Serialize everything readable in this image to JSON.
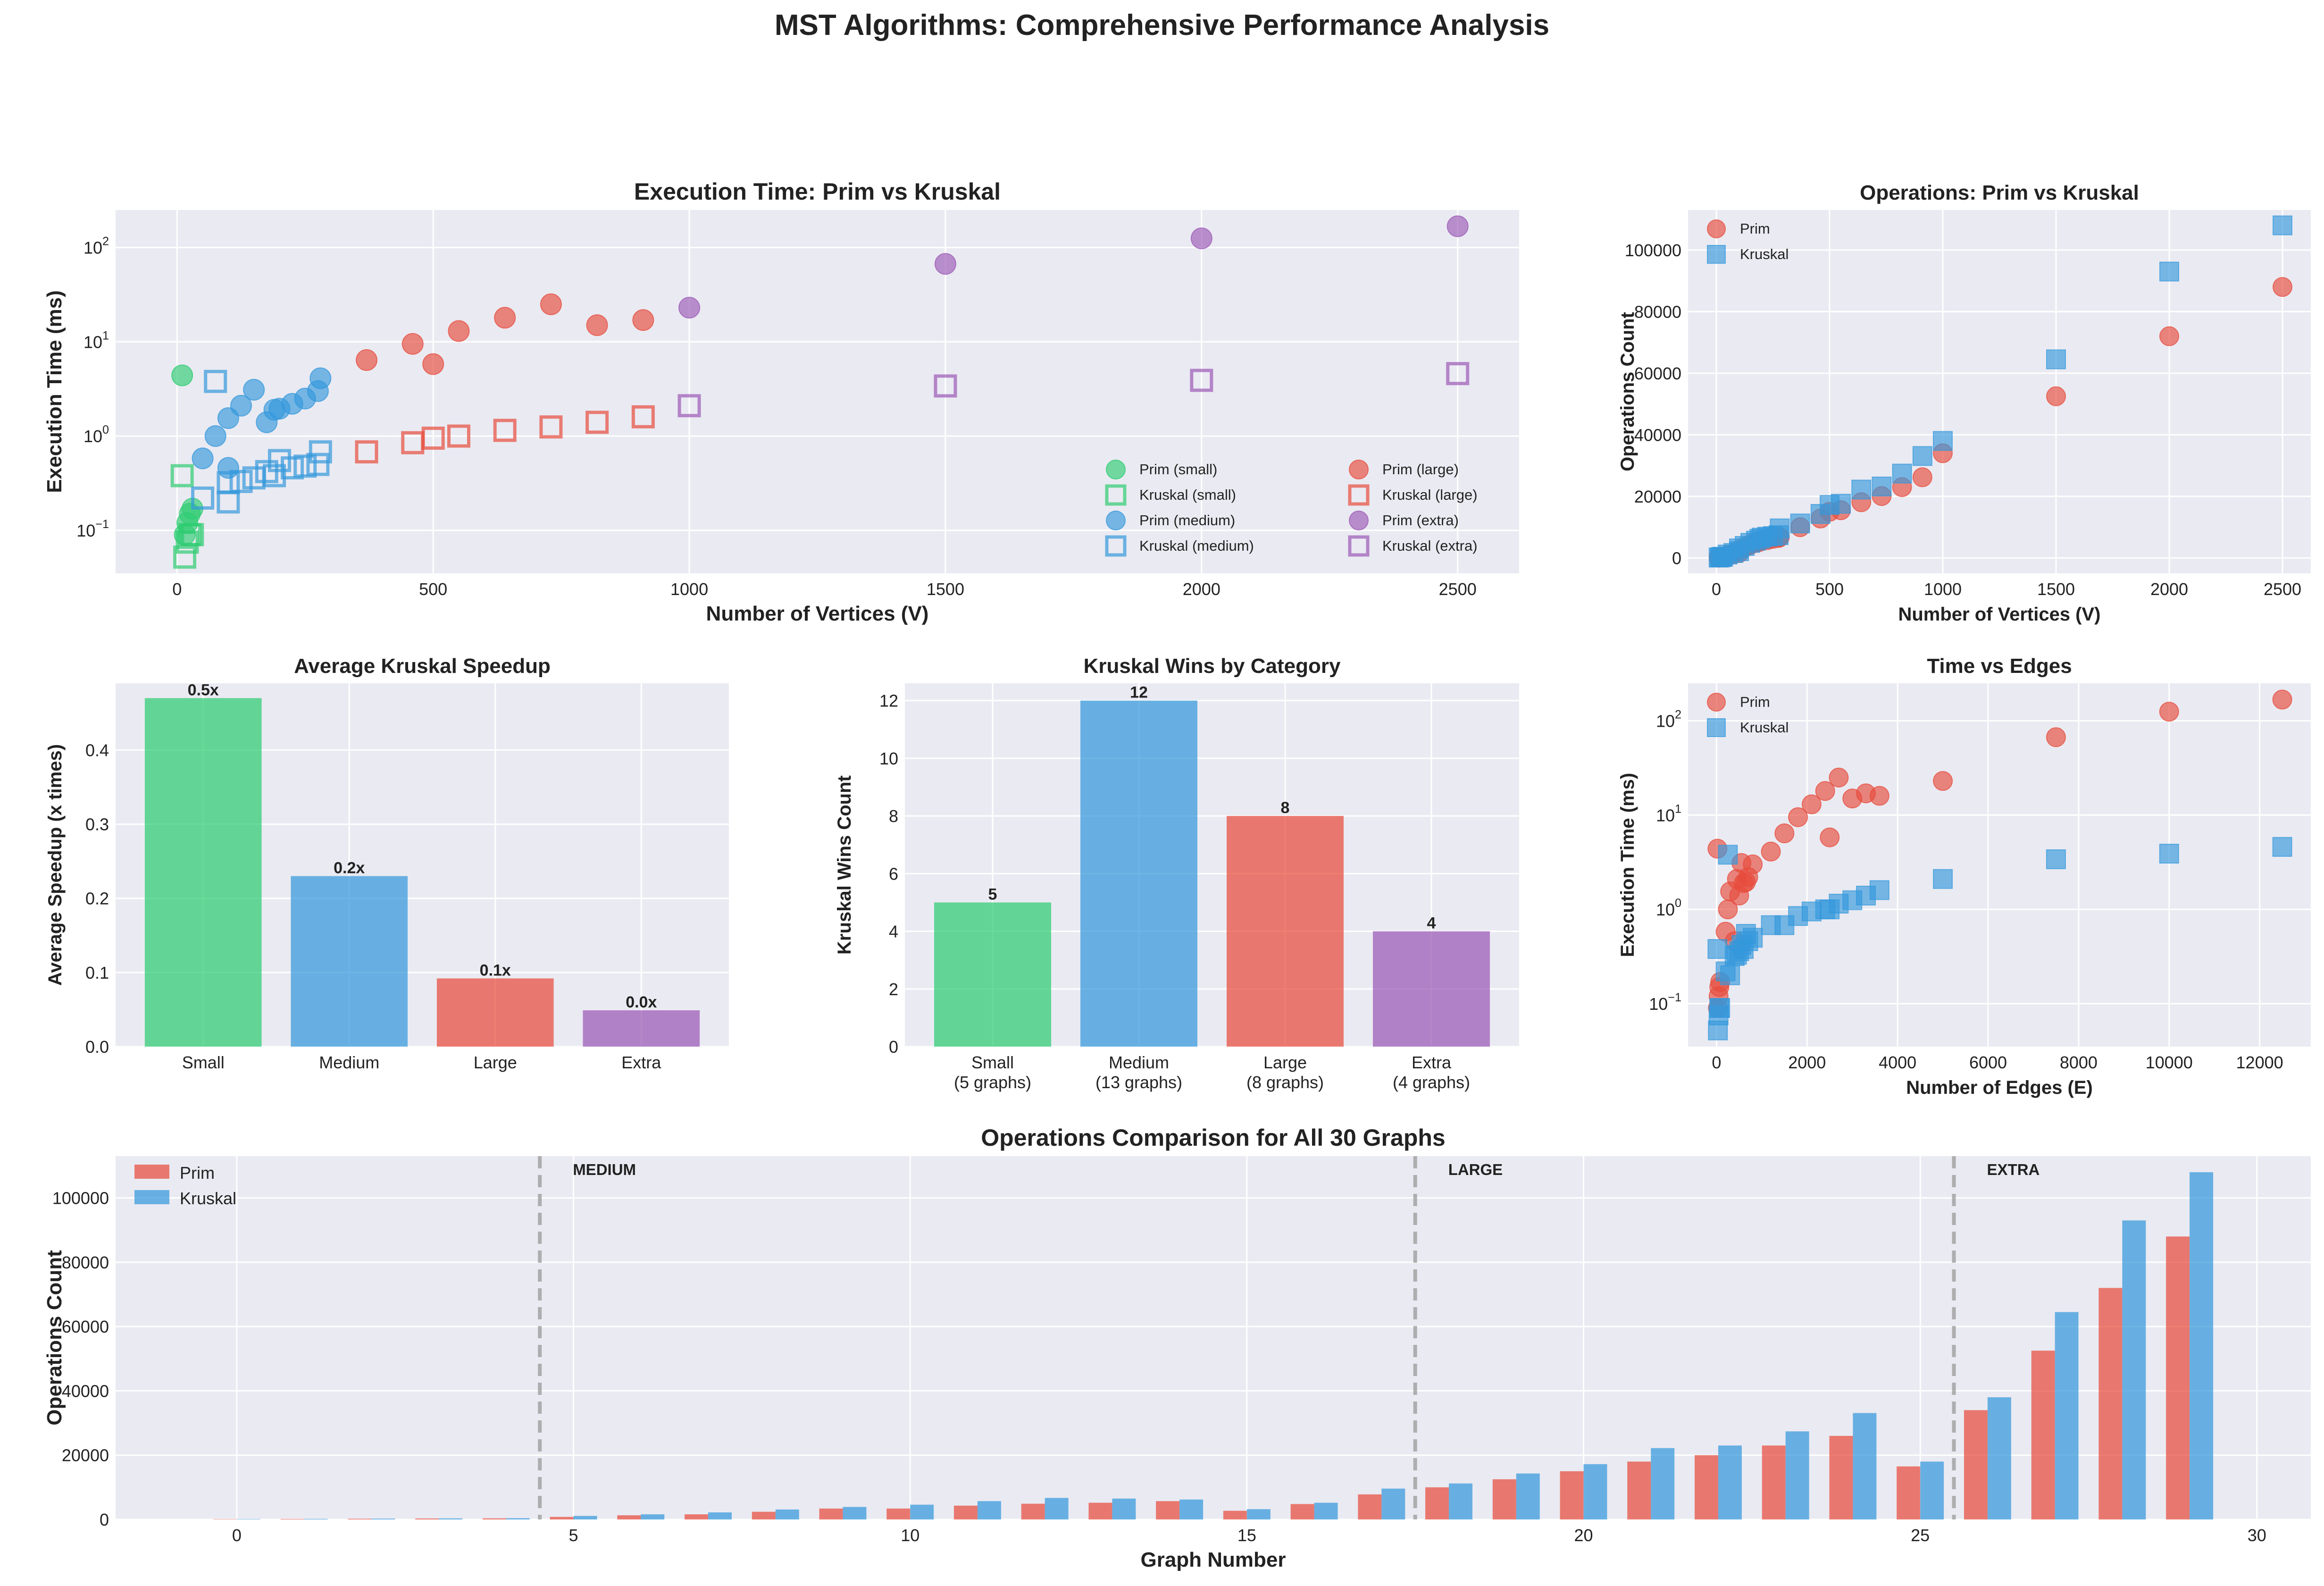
{
  "suptitle": "MST Algorithms: Comprehensive Performance Analysis",
  "colors": {
    "small": "#2ecc71",
    "medium": "#3498db",
    "large": "#e74c3c",
    "extra": "#9b59b6",
    "prim": "#e74c3c",
    "kruskal": "#3498db",
    "axes_bg": "#eaeaf2",
    "grid": "#ffffff"
  },
  "chart_data": [
    {
      "id": "exec_time",
      "type": "scatter",
      "title": "Execution Time: Prim vs Kruskal",
      "xlabel": "Number of Vertices (V)",
      "ylabel": "Execution Time (ms)",
      "xlim": [
        -120,
        2620
      ],
      "ylim": [
        0.035,
        250
      ],
      "yscale": "log",
      "xticks": [
        0,
        500,
        1000,
        1500,
        2000,
        2500
      ],
      "yticks": [
        0.1,
        1,
        10,
        100
      ],
      "ytick_labels": [
        "10",
        "10",
        "10",
        "10"
      ],
      "ytick_exponents": [
        "−1",
        "0",
        "1",
        "2"
      ],
      "legend": "lower-right",
      "series": [
        {
          "name": "Prim (small)",
          "group": "small",
          "marker": "circle",
          "x": [
            10,
            15,
            20,
            25,
            30
          ],
          "y": [
            4.4,
            0.09,
            0.12,
            0.15,
            0.17
          ]
        },
        {
          "name": "Kruskal (small)",
          "group": "small",
          "marker": "square",
          "x": [
            10,
            15,
            20,
            25,
            30
          ],
          "y": [
            0.38,
            0.052,
            0.075,
            0.09,
            0.09
          ]
        },
        {
          "name": "Prim (medium)",
          "group": "medium",
          "marker": "circle",
          "x": [
            50,
            75,
            100,
            100,
            125,
            150,
            175,
            190,
            200,
            225,
            250,
            275,
            280
          ],
          "y": [
            0.58,
            1.0,
            1.55,
            0.46,
            2.1,
            3.1,
            1.4,
            1.9,
            1.95,
            2.2,
            2.5,
            3.0,
            4.1
          ]
        },
        {
          "name": "Kruskal (medium)",
          "group": "medium",
          "marker": "square",
          "x": [
            50,
            75,
            100,
            100,
            125,
            150,
            175,
            190,
            200,
            225,
            250,
            275,
            280
          ],
          "y": [
            0.22,
            3.8,
            0.2,
            0.32,
            0.33,
            0.36,
            0.42,
            0.38,
            0.55,
            0.46,
            0.48,
            0.5,
            0.68
          ]
        },
        {
          "name": "Prim (large)",
          "group": "large",
          "marker": "circle",
          "x": [
            370,
            460,
            500,
            550,
            640,
            730,
            820,
            910
          ],
          "y": [
            6.4,
            9.5,
            5.8,
            13,
            18,
            25,
            15,
            17
          ]
        },
        {
          "name": "Kruskal (large)",
          "group": "large",
          "marker": "square",
          "x": [
            370,
            460,
            500,
            550,
            640,
            730,
            820,
            910
          ],
          "y": [
            0.68,
            0.85,
            0.95,
            1.0,
            1.15,
            1.25,
            1.4,
            1.6
          ]
        },
        {
          "name": "Prim (extra)",
          "group": "extra",
          "marker": "circle",
          "x": [
            1000,
            1500,
            2000,
            2500
          ],
          "y": [
            23,
            67,
            125,
            168
          ]
        },
        {
          "name": "Kruskal (extra)",
          "group": "extra",
          "marker": "square",
          "x": [
            1000,
            1500,
            2000,
            2500
          ],
          "y": [
            2.1,
            3.4,
            3.9,
            4.6
          ]
        }
      ]
    },
    {
      "id": "ops_vertices",
      "type": "scatter",
      "title": "Operations: Prim vs Kruskal",
      "xlabel": "Number of Vertices (V)",
      "ylabel": "Operations Count",
      "xlim": [
        -125,
        2625
      ],
      "ylim": [
        -5000,
        113000
      ],
      "xticks": [
        0,
        500,
        1000,
        1500,
        2000,
        2500
      ],
      "yticks": [
        0,
        20000,
        40000,
        60000,
        80000,
        100000
      ],
      "legend": "upper-left",
      "series": [
        {
          "name": "Prim",
          "marker": "circle",
          "x": [
            10,
            15,
            20,
            25,
            30,
            50,
            75,
            100,
            100,
            125,
            150,
            175,
            190,
            200,
            225,
            250,
            275,
            280,
            370,
            460,
            500,
            550,
            640,
            730,
            820,
            910,
            1000,
            1500,
            2000,
            2500
          ],
          "y": [
            100,
            150,
            220,
            300,
            350,
            800,
            1300,
            1600,
            2400,
            3400,
            4300,
            4900,
            5200,
            5700,
            5800,
            6200,
            6500,
            6800,
            10000,
            12800,
            15000,
            15500,
            18100,
            20100,
            23000,
            26200,
            34000,
            52500,
            72000,
            88000
          ]
        },
        {
          "name": "Kruskal",
          "marker": "square",
          "x": [
            10,
            15,
            20,
            25,
            30,
            50,
            75,
            100,
            100,
            125,
            150,
            175,
            190,
            200,
            225,
            250,
            275,
            280,
            370,
            460,
            500,
            550,
            640,
            730,
            820,
            910,
            1000,
            1500,
            2000,
            2500
          ],
          "y": [
            120,
            180,
            260,
            340,
            400,
            1100,
            1600,
            2200,
            3100,
            3900,
            4900,
            5600,
            6200,
            6600,
            6900,
            7100,
            7400,
            9600,
            11200,
            14300,
            17200,
            17600,
            22200,
            23200,
            27400,
            33100,
            38000,
            64500,
            93000,
            108000
          ]
        }
      ]
    },
    {
      "id": "avg_speedup",
      "type": "bar",
      "title": "Average Kruskal Speedup",
      "xlabel": "",
      "ylabel": "Average Speedup (x times)",
      "categories": [
        "Small",
        "Medium",
        "Large",
        "Extra"
      ],
      "values": [
        0.47,
        0.23,
        0.092,
        0.049
      ],
      "value_labels": [
        "0.5x",
        "0.2x",
        "0.1x",
        "0.0x"
      ],
      "ylim": [
        0,
        0.49
      ],
      "yticks": [
        0.0,
        0.1,
        0.2,
        0.3,
        0.4
      ],
      "ytick_labels": [
        "0.0",
        "0.1",
        "0.2",
        "0.3",
        "0.4"
      ]
    },
    {
      "id": "wins",
      "type": "bar",
      "title": "Kruskal Wins by Category",
      "xlabel": "",
      "ylabel": "Kruskal Wins Count",
      "categories": [
        "Small",
        "Medium",
        "Large",
        "Extra"
      ],
      "category_sublabels": [
        "(5 graphs)",
        "(13 graphs)",
        "(8 graphs)",
        "(4 graphs)"
      ],
      "values": [
        5,
        12,
        8,
        4
      ],
      "value_labels": [
        "5",
        "12",
        "8",
        "4"
      ],
      "ylim": [
        0,
        12.6
      ],
      "yticks": [
        0,
        2,
        4,
        6,
        8,
        10,
        12
      ]
    },
    {
      "id": "time_edges",
      "type": "scatter",
      "title": "Time vs Edges",
      "xlabel": "Number of Edges (E)",
      "ylabel": "Execution Time (ms)",
      "xlim": [
        -630,
        13130
      ],
      "ylim": [
        0.035,
        250
      ],
      "yscale": "log",
      "xticks": [
        0,
        2000,
        4000,
        6000,
        8000,
        10000,
        12000
      ],
      "yticks": [
        0.1,
        1,
        10,
        100
      ],
      "ytick_labels": [
        "10",
        "10",
        "10",
        "10"
      ],
      "ytick_exponents": [
        "−1",
        "0",
        "1",
        "2"
      ],
      "legend": "upper-left",
      "series": [
        {
          "name": "Prim",
          "marker": "circle",
          "x": [
            20,
            30,
            45,
            60,
            80,
            200,
            250,
            300,
            400,
            450,
            500,
            550,
            600,
            650,
            700,
            800,
            1200,
            1500,
            1800,
            2100,
            2400,
            2700,
            3000,
            3300,
            3600,
            5000,
            7500,
            10000,
            12500,
            2500
          ],
          "y": [
            4.4,
            0.09,
            0.12,
            0.15,
            0.17,
            0.58,
            1.0,
            1.55,
            0.46,
            2.1,
            1.4,
            3.1,
            1.9,
            1.95,
            2.2,
            3.0,
            4.1,
            6.4,
            9.5,
            13,
            18,
            25,
            15,
            17,
            16,
            23,
            67,
            125,
            168,
            5.8
          ]
        },
        {
          "name": "Kruskal",
          "marker": "square",
          "x": [
            20,
            30,
            45,
            60,
            80,
            200,
            250,
            300,
            400,
            450,
            500,
            550,
            600,
            650,
            700,
            800,
            1200,
            1500,
            1800,
            2100,
            2400,
            2700,
            3000,
            3300,
            3600,
            5000,
            7500,
            10000,
            12500,
            2500
          ],
          "y": [
            0.38,
            0.052,
            0.075,
            0.09,
            0.09,
            0.22,
            3.8,
            0.2,
            0.32,
            0.33,
            0.36,
            0.42,
            0.38,
            0.55,
            0.46,
            0.5,
            0.68,
            0.68,
            0.85,
            0.95,
            1.0,
            1.15,
            1.25,
            1.4,
            1.6,
            2.1,
            3.4,
            3.9,
            4.6,
            1.0
          ]
        }
      ]
    },
    {
      "id": "ops_all",
      "type": "bar",
      "title": "Operations Comparison for All 30 Graphs",
      "xlabel": "Graph Number",
      "ylabel": "Operations Count",
      "x": [
        0,
        1,
        2,
        3,
        4,
        5,
        6,
        7,
        8,
        9,
        10,
        11,
        12,
        13,
        14,
        15,
        16,
        17,
        18,
        19,
        20,
        21,
        22,
        23,
        24,
        25,
        26,
        27,
        28,
        29
      ],
      "xlim": [
        -1.8,
        30.8
      ],
      "ylim": [
        0,
        113000
      ],
      "xticks": [
        0,
        5,
        10,
        15,
        20,
        25,
        30
      ],
      "yticks": [
        0,
        20000,
        40000,
        60000,
        80000,
        100000
      ],
      "legend": "upper-left",
      "separators": [
        {
          "x": 4.5,
          "label": "MEDIUM"
        },
        {
          "x": 17.5,
          "label": "LARGE"
        },
        {
          "x": 25.5,
          "label": "EXTRA"
        }
      ],
      "series": [
        {
          "name": "Prim",
          "values": [
            100,
            150,
            220,
            300,
            350,
            800,
            1300,
            1600,
            2400,
            3400,
            3400,
            4300,
            4900,
            5200,
            5700,
            2700,
            4800,
            7800,
            10000,
            12500,
            15000,
            18000,
            20000,
            23000,
            26000,
            16500,
            34000,
            52500,
            72000,
            88000
          ]
        },
        {
          "name": "Kruskal",
          "values": [
            120,
            180,
            260,
            340,
            400,
            1100,
            1600,
            2200,
            3100,
            3900,
            4600,
            5700,
            6700,
            6500,
            6200,
            3200,
            5200,
            9600,
            11200,
            14300,
            17200,
            22200,
            23000,
            27400,
            33100,
            18000,
            38000,
            64500,
            93000,
            108000
          ]
        }
      ]
    }
  ]
}
